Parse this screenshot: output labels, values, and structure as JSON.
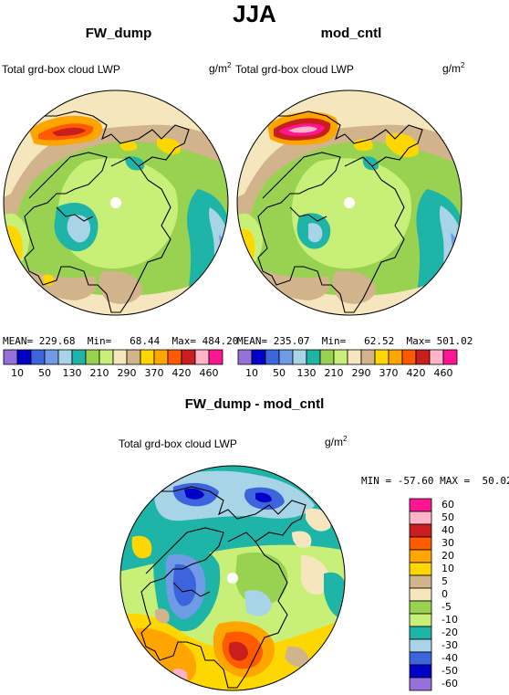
{
  "title": "JJA",
  "panels": [
    {
      "id": "fw_dump",
      "title": "FW_dump",
      "variable": "Total grd-box cloud LWP",
      "unit": "g/m",
      "unit_sup": "2",
      "stats": {
        "mean_label": "MEAN=",
        "mean": "229.68",
        "min_label": "Min=",
        "min": "68.44",
        "max_label": "Max=",
        "max": "484.20"
      }
    },
    {
      "id": "mod_cntl",
      "title": "mod_cntl",
      "variable": "Total grd-box cloud LWP",
      "unit": "g/m",
      "unit_sup": "2",
      "stats": {
        "mean_label": "MEAN=",
        "mean": "235.07",
        "min_label": "Min=",
        "min": "62.52",
        "max_label": "Max=",
        "max": "501.02"
      }
    }
  ],
  "colorbar_top": {
    "labels": [
      "10",
      "50",
      "130",
      "210",
      "290",
      "370",
      "420",
      "460"
    ],
    "colors": [
      "#9470d8",
      "#0000c8",
      "#3c64dc",
      "#6e9ae6",
      "#a8d4e8",
      "#1eb4a8",
      "#98d250",
      "#c8f078",
      "#f5e6bd",
      "#d2b48c",
      "#ffd700",
      "#ffa500",
      "#ff5a00",
      "#c81e1e",
      "#ffb4c8",
      "#ff1493"
    ]
  },
  "difference": {
    "title": "FW_dump - mod_cntl",
    "variable": "Total grd-box cloud LWP",
    "unit": "g/m",
    "unit_sup": "2",
    "stats": {
      "min_label": "MIN =",
      "min": "-57.60",
      "max_label": "MAX =",
      "max": "50.02"
    },
    "colorbar": {
      "labels": [
        "60",
        "50",
        "40",
        "30",
        "20",
        "10",
        "5",
        "0",
        "-5",
        "-10",
        "-20",
        "-30",
        "-40",
        "-50",
        "-60"
      ],
      "colors": [
        "#ff1493",
        "#ffb4c8",
        "#c81e1e",
        "#ff5a00",
        "#ffa500",
        "#ffd700",
        "#d2b48c",
        "#f5e6bd",
        "#98d250",
        "#c8f078",
        "#1eb4a8",
        "#a8d4e8",
        "#3c64dc",
        "#0000c8",
        "#9470d8"
      ]
    }
  }
}
